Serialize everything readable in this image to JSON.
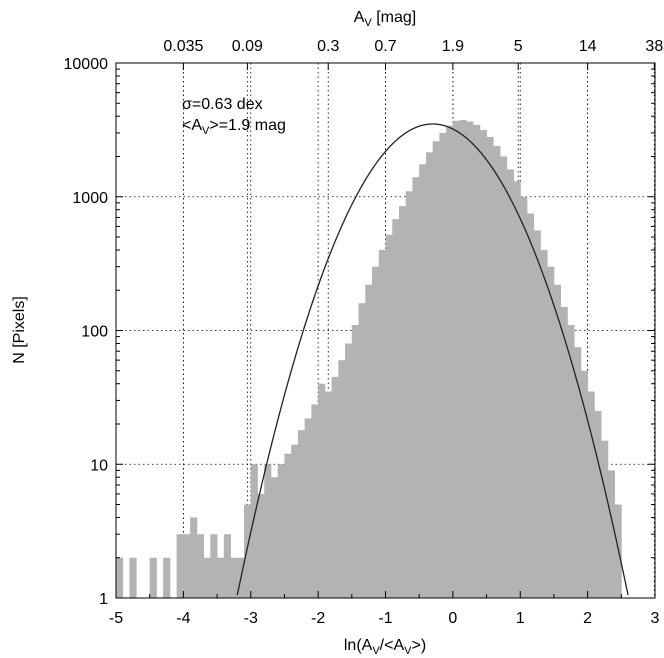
{
  "chart_data": {
    "type": "bar",
    "xlabel": "ln(A_V/<A_V>)",
    "ylabel": "N [Pixels]",
    "top_xlabel": "A_V [mag]",
    "xlim": [
      -5,
      3
    ],
    "ylim": [
      1,
      10000
    ],
    "yscale": "log",
    "grid": true,
    "x_ticks": [
      -5,
      -4,
      -3,
      -2,
      -1,
      0,
      1,
      2,
      3
    ],
    "x_tick_labels": [
      "-5",
      "-4",
      "-3",
      "-2",
      "-1",
      "0",
      "1",
      "2",
      "3"
    ],
    "y_ticks": [
      1,
      10,
      100,
      1000,
      10000
    ],
    "y_tick_labels": [
      "1",
      "10",
      "100",
      "1000",
      "10000"
    ],
    "top_ticks_x": [
      -4.0,
      -3.05,
      -1.85,
      -1.0,
      0.0,
      0.97,
      2.0,
      2.99
    ],
    "top_tick_labels": [
      "0.035",
      "0.09",
      "0.3",
      "0.7",
      "1.9",
      "5",
      "14",
      "38"
    ],
    "annotations": {
      "sigma": "σ=0.63 dex",
      "mean_prefix": "<A",
      "mean_sub": "V",
      "mean_suffix": ">=1.9 mag"
    },
    "histogram": {
      "bin_width": 0.1,
      "bin_left_edges": [
        -5.0,
        -4.9,
        -4.8,
        -4.7,
        -4.6,
        -4.5,
        -4.4,
        -4.3,
        -4.2,
        -4.1,
        -4.0,
        -3.9,
        -3.8,
        -3.7,
        -3.6,
        -3.5,
        -3.4,
        -3.3,
        -3.2,
        -3.1,
        -3.0,
        -2.9,
        -2.8,
        -2.7,
        -2.6,
        -2.5,
        -2.4,
        -2.3,
        -2.2,
        -2.1,
        -2.0,
        -1.9,
        -1.8,
        -1.7,
        -1.6,
        -1.5,
        -1.4,
        -1.3,
        -1.2,
        -1.1,
        -1.0,
        -0.9,
        -0.8,
        -0.7,
        -0.6,
        -0.5,
        -0.4,
        -0.3,
        -0.2,
        -0.1,
        0.0,
        0.1,
        0.2,
        0.3,
        0.4,
        0.5,
        0.6,
        0.7,
        0.8,
        0.9,
        1.0,
        1.1,
        1.2,
        1.3,
        1.4,
        1.5,
        1.6,
        1.7,
        1.8,
        1.9,
        2.0,
        2.1,
        2.2,
        2.3,
        2.4
      ],
      "counts": [
        2,
        1,
        2,
        1,
        1,
        2,
        1,
        2,
        1,
        3,
        3,
        4,
        3,
        2,
        3,
        2,
        3,
        2,
        2,
        5,
        10,
        6,
        10,
        8,
        10,
        12,
        14,
        18,
        22,
        28,
        40,
        35,
        45,
        60,
        80,
        110,
        160,
        220,
        300,
        400,
        520,
        680,
        850,
        1100,
        1400,
        1750,
        2150,
        2600,
        3000,
        3400,
        3700,
        3750,
        3650,
        3450,
        3150,
        2800,
        2400,
        2000,
        1600,
        1300,
        1000,
        750,
        560,
        400,
        300,
        220,
        150,
        110,
        75,
        50,
        35,
        25,
        15,
        9,
        5
      ]
    },
    "fit": {
      "type": "gaussian",
      "peak": 3500,
      "mean": -0.3,
      "sigma": 0.72
    }
  }
}
